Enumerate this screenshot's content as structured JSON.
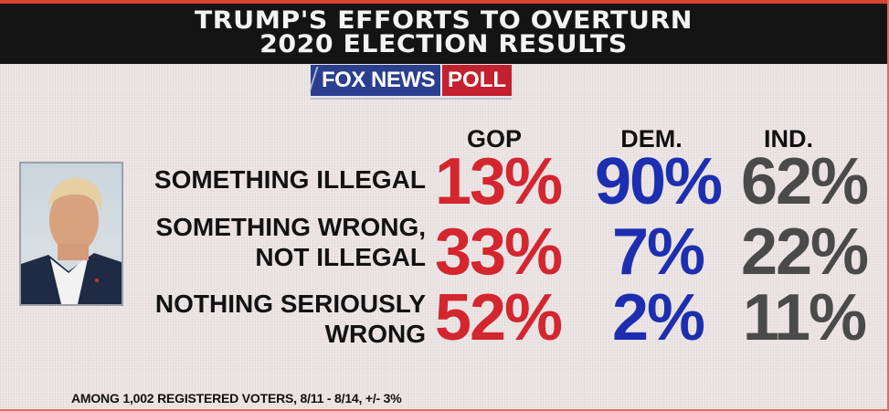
{
  "header": {
    "title_line1": "TRUMP'S EFFORTS TO OVERTURN",
    "title_line2": "2020 ELECTION RESULTS"
  },
  "logo": {
    "part1": "FOX NEWS",
    "part2": "POLL"
  },
  "footnote": "AMONG 1,002 REGISTERED VOTERS, 8/11 - 8/14, +/- 3%",
  "colors": {
    "gop": "#d4262f",
    "dem": "#1d2fb0",
    "ind": "#4a4a4a"
  },
  "chart_data": {
    "type": "table",
    "title": "TRUMP'S EFFORTS TO OVERTURN 2020 ELECTION RESULTS",
    "columns": [
      "GOP",
      "DEM.",
      "IND."
    ],
    "rows": [
      {
        "label_lines": [
          "SOMETHING ILLEGAL"
        ],
        "values": [
          "13%",
          "90%",
          "62%"
        ]
      },
      {
        "label_lines": [
          "SOMETHING WRONG,",
          "NOT ILLEGAL"
        ],
        "values": [
          "33%",
          "7%",
          "22%"
        ]
      },
      {
        "label_lines": [
          "NOTHING SERIOUSLY",
          "WRONG"
        ],
        "values": [
          "52%",
          "2%",
          "11%"
        ]
      }
    ]
  }
}
